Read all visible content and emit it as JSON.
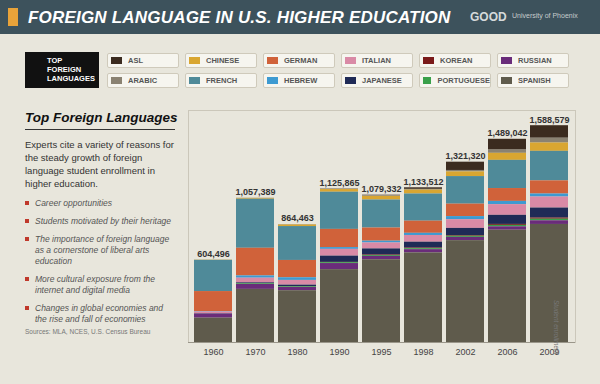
{
  "header": {
    "title": "FOREIGN LANGUAGE IN U.S. HIGHER EDUCATION",
    "logo": "GOOD",
    "partner": "University of Phoenix"
  },
  "sidebar": {
    "heading": "Top Foreign Languages",
    "intro": "Experts cite a variety of reasons for the steady growth of foreign language student enrollment in higher education.",
    "bullets": [
      "Career opportunities",
      "Students motivated by their heritage",
      "The importance of foreign language as a cornerstone of liberal arts education",
      "More cultural exposure from the internet and digital media",
      "Changes in global economies and the rise and fall of economies"
    ],
    "sources": "Sources: MLA, NCES, U.S. Census Bureau"
  },
  "chart_data": {
    "type": "bar",
    "stacked": true,
    "legend": "top",
    "legend_title": "TOP FOREIGN LANGUAGES",
    "ylabel": "Student enrollment",
    "tick_labels": "x",
    "categories": [
      "1960",
      "1970",
      "1980",
      "1990",
      "1995",
      "1998",
      "2002",
      "2006",
      "2009"
    ],
    "ylim": [
      0,
      1700000
    ],
    "series": [
      {
        "name": "ASL",
        "color": "#3b2b1f",
        "values": [
          0,
          0,
          0,
          1602,
          4304,
          11420,
          60781,
          78829,
          91763
        ]
      },
      {
        "name": "ARABIC",
        "color": "#8a8272",
        "values": [
          541,
          1333,
          3466,
          3475,
          4444,
          5505,
          10584,
          23974,
          35083
        ]
      },
      {
        "name": "CHINESE",
        "color": "#d9a631",
        "values": [
          1844,
          6238,
          11366,
          19490,
          26471,
          28456,
          34153,
          51582,
          60976
        ]
      },
      {
        "name": "FRENCH",
        "color": "#4f8a99",
        "values": [
          228813,
          359313,
          248361,
          272472,
          205351,
          199064,
          201979,
          206426,
          216419
        ]
      },
      {
        "name": "GERMAN",
        "color": "#d0623a",
        "values": [
          146116,
          202569,
          126910,
          133348,
          96263,
          89020,
          91100,
          94264,
          96349
        ]
      },
      {
        "name": "HEBREW",
        "color": "#3d9ad1",
        "values": [
          3834,
          16567,
          19429,
          12995,
          13127,
          15833,
          22802,
          23752,
          22052
        ]
      },
      {
        "name": "ITALIAN",
        "color": "#d98aa6",
        "values": [
          11142,
          34244,
          34791,
          49699,
          43760,
          49287,
          63899,
          78368,
          80752
        ]
      },
      {
        "name": "JAPANESE",
        "color": "#1f2a56",
        "values": [
          1746,
          6620,
          11506,
          45717,
          44723,
          43141,
          52238,
          66605,
          73434
        ]
      },
      {
        "name": "KOREAN",
        "color": "#7a1a1a",
        "values": [
          168,
          101,
          374,
          2286,
          3343,
          4479,
          5211,
          7145,
          8511
        ]
      },
      {
        "name": "PORTUGUESE",
        "color": "#3aa04a",
        "values": [
          1033,
          5065,
          4894,
          6211,
          6531,
          6926,
          8385,
          10267,
          11371
        ]
      },
      {
        "name": "RUSSIAN",
        "color": "#6a2c7a",
        "values": [
          30570,
          36189,
          23987,
          44626,
          24729,
          23791,
          23921,
          24845,
          26883
        ]
      },
      {
        "name": "SPANISH",
        "color": "#5f5b4c",
        "values": [
          178689,
          389150,
          379379,
          533944,
          606286,
          656590,
          746267,
          822985,
          864986
        ]
      }
    ],
    "totals": [
      604496,
      1057389,
      864463,
      1125865,
      1079332,
      1133512,
      1321320,
      1489042,
      1588579
    ],
    "total_labels": [
      "604,496",
      "1,057,389",
      "864,463",
      "1,125,865",
      "1,079,332",
      "1,133,512",
      "1,321,320",
      "1,489,042",
      "1,588,579"
    ]
  }
}
